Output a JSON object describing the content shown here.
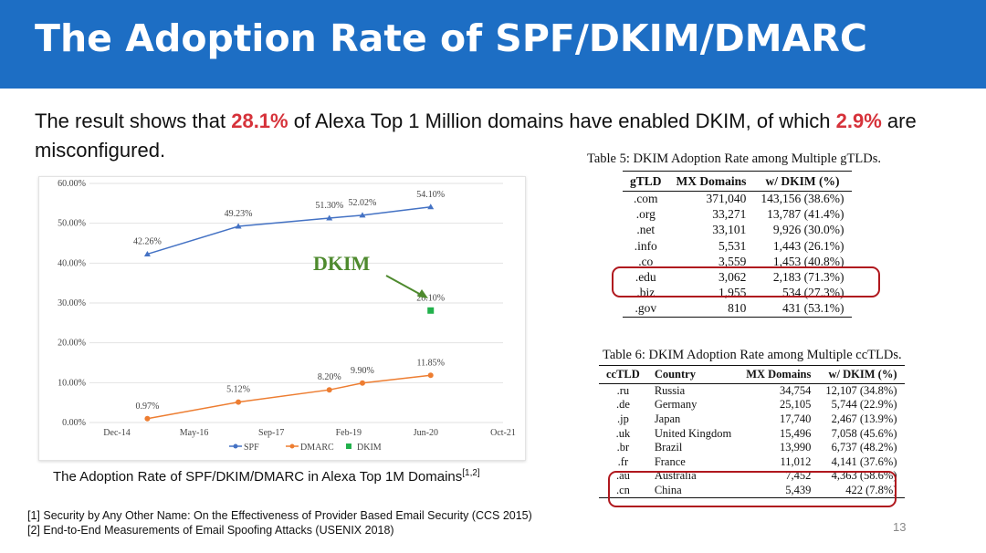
{
  "slide": {
    "title": "The Adoption Rate of SPF/DKIM/DMARC",
    "lead_pre": "The result shows that ",
    "lead_pct1": "28.1%",
    "lead_mid": " of Alexa Top 1 Million domains have enabled DKIM, of which ",
    "lead_pct2": "2.9%",
    "lead_post": " are misconfigured.",
    "caption": "The Adoption Rate of SPF/DKIM/DMARC in Alexa Top 1M Domains",
    "caption_sup": "[1,2]",
    "refs": [
      "[1] Security by Any Other Name: On the Effectiveness of Provider Based Email Security (CCS 2015)",
      "[2] End-to-End Measurements of Email Spoofing Attacks (USENIX 2018)"
    ],
    "page_number": "13"
  },
  "chart_data": {
    "type": "line",
    "x_ticks": [
      "Dec-14",
      "May-16",
      "Sep-17",
      "Feb-19",
      "Jun-20",
      "Oct-21"
    ],
    "y_ticks": [
      "0.00%",
      "10.00%",
      "20.00%",
      "30.00%",
      "40.00%",
      "50.00%",
      "60.00%"
    ],
    "ylim": [
      0,
      60
    ],
    "annotation": "DKIM",
    "series": [
      {
        "name": "SPF",
        "color": "#4472c4",
        "x": [
          0.14,
          0.36,
          0.58,
          0.66,
          0.825
        ],
        "values": [
          42.26,
          49.23,
          51.3,
          52.02,
          54.1
        ],
        "labels": [
          "42.26%",
          "49.23%",
          "51.30%",
          "52.02%",
          "54.10%"
        ]
      },
      {
        "name": "DMARC",
        "color": "#ed7d31",
        "x": [
          0.14,
          0.36,
          0.58,
          0.66,
          0.825
        ],
        "values": [
          0.97,
          5.12,
          8.2,
          9.9,
          11.85
        ],
        "labels": [
          "0.97%",
          "5.12%",
          "8.20%",
          "9.90%",
          "11.85%"
        ]
      },
      {
        "name": "DKIM",
        "color": "#22b14c",
        "x": [
          0.825
        ],
        "values": [
          28.1
        ],
        "labels": [
          "28.10%"
        ]
      }
    ]
  },
  "table5": {
    "title": "Table 5: DKIM Adoption Rate among Multiple gTLDs.",
    "headers": [
      "gTLD",
      "MX Domains",
      "w/ DKIM (%)"
    ],
    "rows": [
      [
        ".com",
        "371,040",
        "143,156 (38.6%)"
      ],
      [
        ".org",
        "33,271",
        "13,787 (41.4%)"
      ],
      [
        ".net",
        "33,101",
        "9,926 (30.0%)"
      ],
      [
        ".info",
        "5,531",
        "1,443 (26.1%)"
      ],
      [
        ".co",
        "3,559",
        "1,453 (40.8%)"
      ],
      [
        ".edu",
        "3,062",
        "2,183 (71.3%)"
      ],
      [
        ".biz",
        "1,955",
        "534 (27.3%)"
      ],
      [
        ".gov",
        "810",
        "431 (53.1%)"
      ]
    ]
  },
  "table6": {
    "title": "Table 6: DKIM Adoption Rate among Multiple ccTLDs.",
    "headers": [
      "ccTLD",
      "Country",
      "MX Domains",
      "w/ DKIM (%)"
    ],
    "rows": [
      [
        ".ru",
        "Russia",
        "34,754",
        "12,107 (34.8%)"
      ],
      [
        ".de",
        "Germany",
        "25,105",
        "5,744 (22.9%)"
      ],
      [
        ".jp",
        "Japan",
        "17,740",
        "2,467 (13.9%)"
      ],
      [
        ".uk",
        "United Kingdom",
        "15,496",
        "7,058 (45.6%)"
      ],
      [
        ".br",
        "Brazil",
        "13,990",
        "6,737 (48.2%)"
      ],
      [
        ".fr",
        "France",
        "11,012",
        "4,141 (37.6%)"
      ],
      [
        ".au",
        "Australia",
        "7,452",
        "4,363 (58.6%)"
      ],
      [
        ".cn",
        "China",
        "5,439",
        "422 (7.8%)"
      ]
    ]
  }
}
